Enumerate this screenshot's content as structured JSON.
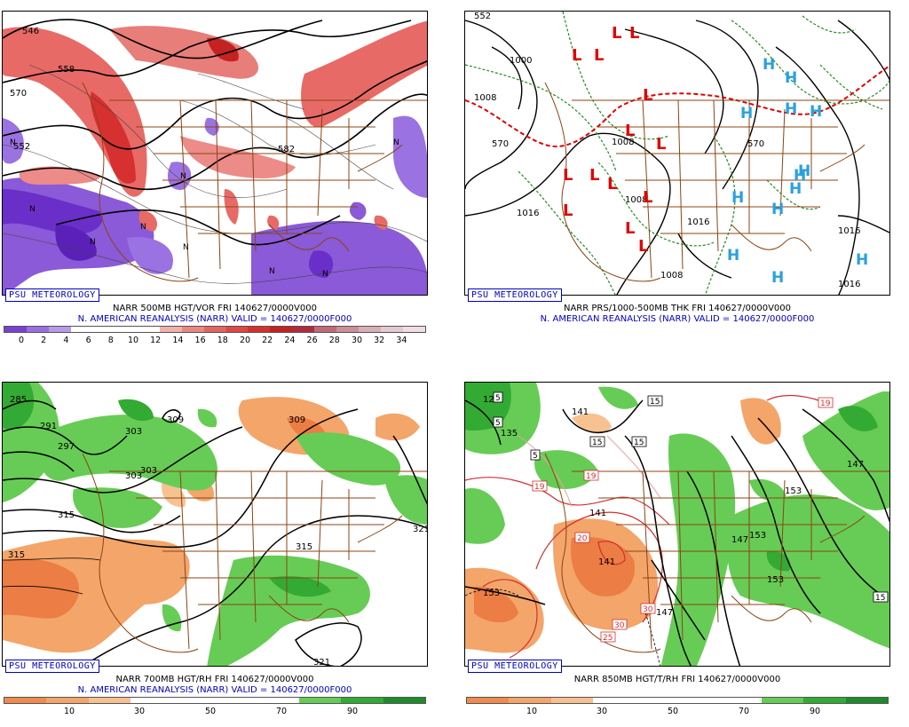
{
  "panels": [
    {
      "badge": "PSU METEOROLOGY",
      "line1": "NARR 500MB HGT/VOR FRI 140627/0000V000",
      "line2": "N. AMERICAN REANALYSIS (NARR) VALID = 140627/0000F000",
      "colorbar": {
        "colors": [
          "#7a3fd0",
          "#9a6ee0",
          "#b79ae8",
          "#ffffff",
          "#ffffff",
          "#ffffff",
          "#ffffff",
          "#f1b0ae",
          "#ea8683",
          "#e46460",
          "#dd4844",
          "#d63030",
          "#c42222",
          "#b02b3e",
          "#bf6a7a",
          "#cb8e9a",
          "#d8aeb8",
          "#e6c9d0",
          "#f0dce1"
        ],
        "ticks": [
          "0",
          "2",
          "4",
          "6",
          "8",
          "10",
          "12",
          "14",
          "16",
          "18",
          "20",
          "22",
          "24",
          "26",
          "28",
          "30",
          "32",
          "34"
        ]
      },
      "contour_labels": [
        "546",
        "558",
        "570",
        "582",
        "552"
      ]
    },
    {
      "badge": "PSU METEOROLOGY",
      "line1": "NARR PRS/1000-500MB THK FRI 140627/0000V000",
      "line2": "N. AMERICAN REANALYSIS (NARR) VALID = 140627/0000F000",
      "contour_labels": [
        "552",
        "1000",
        "1008",
        "1016",
        "570",
        "1008",
        "1008",
        "1016",
        "1016",
        "1008",
        "1016",
        "1016",
        "570"
      ],
      "high_symbol": "H",
      "low_symbol": "L"
    },
    {
      "badge": "PSU METEOROLOGY",
      "line1": "NARR 700MB HGT/RH FRI 140627/0000V000",
      "line2": "N. AMERICAN REANALYSIS (NARR) VALID = 140627/0000F000",
      "colorbar": {
        "colors": [
          "#f08a4e",
          "#f3a56a",
          "#f7c190",
          "#ffffff",
          "#ffffff",
          "#ffffff",
          "#ffffff",
          "#66cc55",
          "#33aa33",
          "#1f8a2a"
        ],
        "ticks": [
          "10",
          "30",
          "50",
          "70",
          "90"
        ]
      },
      "contour_labels": [
        "285",
        "291",
        "297",
        "303",
        "303",
        "303",
        "309",
        "309",
        "315",
        "315",
        "315",
        "321",
        "321"
      ]
    },
    {
      "badge": "PSU METEOROLOGY",
      "line1": "NARR 850MB HGT/T/RH FRI 140627/0000V000",
      "line2": "",
      "colorbar": {
        "colors": [
          "#f08a4e",
          "#f3a56a",
          "#f7c190",
          "#ffffff",
          "#ffffff",
          "#ffffff",
          "#ffffff",
          "#66cc55",
          "#33aa33",
          "#1f8a2a"
        ],
        "ticks": [
          "10",
          "30",
          "50",
          "70",
          "90"
        ]
      },
      "contour_labels": [
        "129",
        "135",
        "141",
        "141",
        "141",
        "147",
        "147",
        "147",
        "153",
        "153",
        "153",
        "153"
      ],
      "temp_labels": [
        "5",
        "5",
        "5",
        "15",
        "15",
        "15",
        "19",
        "19",
        "19",
        "20",
        "25",
        "30",
        "30",
        "15"
      ]
    }
  ]
}
